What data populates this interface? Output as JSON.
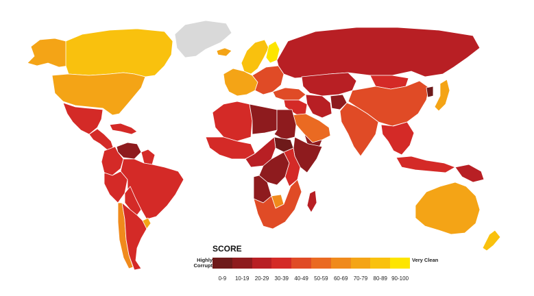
{
  "legend": {
    "title": "SCORE",
    "low_label": "Highly Corrupt",
    "high_label": "Very Clean",
    "bins": [
      {
        "label": "0-9",
        "color": "#6e1a1a"
      },
      {
        "label": "10-19",
        "color": "#8e1b1e"
      },
      {
        "label": "20-29",
        "color": "#b81f24"
      },
      {
        "label": "30-39",
        "color": "#d42a27"
      },
      {
        "label": "40-49",
        "color": "#e04b26"
      },
      {
        "label": "50-59",
        "color": "#ea6a22"
      },
      {
        "label": "60-69",
        "color": "#f08a1c"
      },
      {
        "label": "70-79",
        "color": "#f4a416"
      },
      {
        "label": "80-89",
        "color": "#f9c10e"
      },
      {
        "label": "90-100",
        "color": "#fde500"
      }
    ]
  },
  "regions": [
    {
      "name": "Greenland",
      "bin": "none"
    },
    {
      "name": "Canada",
      "bin": "80-89"
    },
    {
      "name": "Alaska",
      "bin": "70-79"
    },
    {
      "name": "United States",
      "bin": "70-79"
    },
    {
      "name": "Mexico",
      "bin": "30-39"
    },
    {
      "name": "Central America",
      "bin": "30-39"
    },
    {
      "name": "Caribbean",
      "bin": "30-39"
    },
    {
      "name": "Venezuela",
      "bin": "10-19"
    },
    {
      "name": "Guianas",
      "bin": "30-39"
    },
    {
      "name": "Colombia and Ecuador",
      "bin": "30-39"
    },
    {
      "name": "Peru",
      "bin": "30-39"
    },
    {
      "name": "Brazil",
      "bin": "30-39"
    },
    {
      "name": "Bolivia and Paraguay",
      "bin": "30-39"
    },
    {
      "name": "Argentina",
      "bin": "30-39"
    },
    {
      "name": "Chile",
      "bin": "60-69"
    },
    {
      "name": "Uruguay",
      "bin": "70-79"
    },
    {
      "name": "Iceland",
      "bin": "70-79"
    },
    {
      "name": "Scandinavia",
      "bin": "80-89"
    },
    {
      "name": "Finland",
      "bin": "90-100"
    },
    {
      "name": "Western Europe",
      "bin": "70-79"
    },
    {
      "name": "Eastern Europe",
      "bin": "40-49"
    },
    {
      "name": "Russia",
      "bin": "20-29"
    },
    {
      "name": "Turkey",
      "bin": "40-49"
    },
    {
      "name": "Middle East",
      "bin": "30-39"
    },
    {
      "name": "Arabian Peninsula",
      "bin": "50-59"
    },
    {
      "name": "Yemen",
      "bin": "10-19"
    },
    {
      "name": "Central Asia",
      "bin": "20-29"
    },
    {
      "name": "Iran",
      "bin": "20-29"
    },
    {
      "name": "Afghanistan",
      "bin": "10-19"
    },
    {
      "name": "China",
      "bin": "40-49"
    },
    {
      "name": "Mongolia",
      "bin": "30-39"
    },
    {
      "name": "India",
      "bin": "40-49"
    },
    {
      "name": "Southeast Asia",
      "bin": "30-39"
    },
    {
      "name": "Indonesia",
      "bin": "30-39"
    },
    {
      "name": "North Korea",
      "bin": "0-9"
    },
    {
      "name": "Japan",
      "bin": "70-79"
    },
    {
      "name": "Papua New Guinea",
      "bin": "20-29"
    },
    {
      "name": "Australia",
      "bin": "70-79"
    },
    {
      "name": "New Zealand",
      "bin": "80-89"
    },
    {
      "name": "North Africa",
      "bin": "30-39"
    },
    {
      "name": "Libya",
      "bin": "10-19"
    },
    {
      "name": "West Africa",
      "bin": "30-39"
    },
    {
      "name": "Sudan",
      "bin": "10-19"
    },
    {
      "name": "South Sudan",
      "bin": "0-9"
    },
    {
      "name": "Horn of Africa",
      "bin": "10-19"
    },
    {
      "name": "Central Africa",
      "bin": "20-29"
    },
    {
      "name": "DR Congo",
      "bin": "10-19"
    },
    {
      "name": "East Africa",
      "bin": "30-39"
    },
    {
      "name": "Angola",
      "bin": "10-19"
    },
    {
      "name": "Southern Africa",
      "bin": "40-49"
    },
    {
      "name": "Botswana",
      "bin": "60-69"
    },
    {
      "name": "Madagascar",
      "bin": "20-29"
    }
  ]
}
